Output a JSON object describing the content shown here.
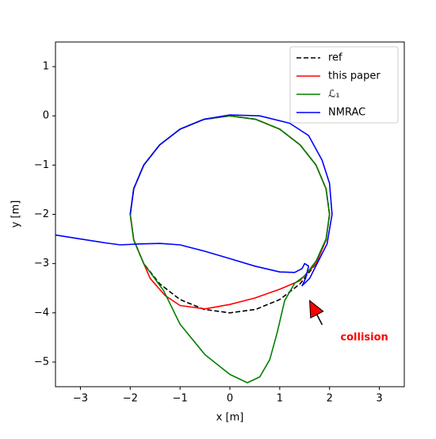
{
  "chart_data": {
    "type": "line",
    "xlabel": "x [m]",
    "ylabel": "y [m]",
    "xlim": [
      -3.5,
      3.5
    ],
    "ylim": [
      -5.5,
      1.5
    ],
    "xticks": [
      {
        "value": -3,
        "label": "−3"
      },
      {
        "value": -2,
        "label": "−2"
      },
      {
        "value": -1,
        "label": "−1"
      },
      0,
      1,
      2,
      3
    ],
    "yticks": [
      {
        "value": -5,
        "label": "−5"
      },
      {
        "value": -4,
        "label": "−4"
      },
      {
        "value": -3,
        "label": "−3"
      },
      {
        "value": -2,
        "label": "−2"
      },
      {
        "value": -1,
        "label": "−1"
      },
      0,
      1
    ],
    "legend": "upper right",
    "series": [
      {
        "name": "ref",
        "color": "#000000",
        "linestyle": "dashed",
        "x": [
          0,
          0.52,
          1,
          1.41,
          1.73,
          1.93,
          2,
          1.93,
          1.73,
          1.41,
          1,
          0.52,
          0,
          -0.52,
          -1,
          -1.41,
          -1.73,
          -1.93,
          -2,
          -1.93,
          -1.73,
          -1.41,
          -1,
          -0.52,
          0
        ],
        "values": [
          0,
          -0.07,
          -0.27,
          -0.59,
          -1,
          -1.48,
          -2,
          -2.52,
          -3,
          -3.41,
          -3.73,
          -3.93,
          -4,
          -3.93,
          -3.73,
          -3.41,
          -3,
          -2.52,
          -2,
          -1.48,
          -1,
          -0.59,
          -0.27,
          -0.07,
          0
        ]
      },
      {
        "name": "this paper",
        "color": "#ff0000",
        "linestyle": "solid",
        "x": [
          1.4,
          1.73,
          1.93,
          2,
          1.93,
          1.73,
          1.41,
          1,
          0.52,
          0,
          -0.52,
          -1,
          -1.41,
          -1.73,
          -1.93,
          -2,
          -1.93,
          -1.73,
          -1.6,
          -1.3,
          -1,
          -0.5,
          0,
          0.5,
          1,
          1.4
        ],
        "values": [
          -3.35,
          -3,
          -2.52,
          -2,
          -1.48,
          -1,
          -0.59,
          -0.27,
          -0.07,
          0,
          -0.07,
          -0.27,
          -0.59,
          -1,
          -1.48,
          -2,
          -2.52,
          -3,
          -3.3,
          -3.65,
          -3.85,
          -3.92,
          -3.83,
          -3.7,
          -3.52,
          -3.35
        ]
      },
      {
        "name": "ℒ₁",
        "color": "#008000",
        "linestyle": "solid",
        "x": [
          1.5,
          1.73,
          1.93,
          2,
          1.93,
          1.73,
          1.41,
          1,
          0.52,
          0,
          -0.52,
          -1,
          -1.41,
          -1.73,
          -1.93,
          -2,
          -1.93,
          -1.73,
          -1.33,
          -1,
          -0.5,
          0,
          0.35,
          0.6,
          0.8,
          0.95,
          1.1,
          1.3,
          1.5
        ],
        "values": [
          -3.25,
          -2.95,
          -2.5,
          -2,
          -1.48,
          -1,
          -0.59,
          -0.27,
          -0.07,
          0,
          -0.07,
          -0.27,
          -0.59,
          -1,
          -1.48,
          -2,
          -2.52,
          -3,
          -3.55,
          -4.23,
          -4.85,
          -5.25,
          -5.42,
          -5.3,
          -4.95,
          -4.4,
          -3.75,
          -3.4,
          -3.25
        ]
      },
      {
        "name": "NMRAC",
        "color": "#0000ff",
        "linestyle": "solid",
        "x": [
          -3.5,
          -3,
          -2.5,
          -2.2,
          -1.8,
          -1.4,
          -1,
          -0.5,
          0,
          0.5,
          1,
          1.3,
          1.45,
          1.5,
          1.58,
          1.52,
          1.45,
          1.6,
          1.75,
          1.95,
          2.05,
          2.0,
          1.85,
          1.58,
          1.2,
          0.6,
          0,
          -0.52,
          -1,
          -1.41,
          -1.73,
          -1.93,
          -2
        ],
        "values": [
          -2.42,
          -2.5,
          -2.58,
          -2.62,
          -2.6,
          -2.59,
          -2.62,
          -2.75,
          -2.9,
          -3.05,
          -3.17,
          -3.18,
          -3.1,
          -3.0,
          -3.05,
          -3.3,
          -3.45,
          -3.3,
          -3.0,
          -2.6,
          -2.0,
          -1.37,
          -0.9,
          -0.4,
          -0.15,
          0,
          0.02,
          -0.07,
          -0.27,
          -0.59,
          -1,
          -1.48,
          -2
        ]
      }
    ],
    "annotations": [
      {
        "text": "collision",
        "x": 1.9,
        "y": -4.5,
        "xy": [
          1.6,
          -3.75
        ],
        "color": "#ff0000"
      }
    ]
  }
}
